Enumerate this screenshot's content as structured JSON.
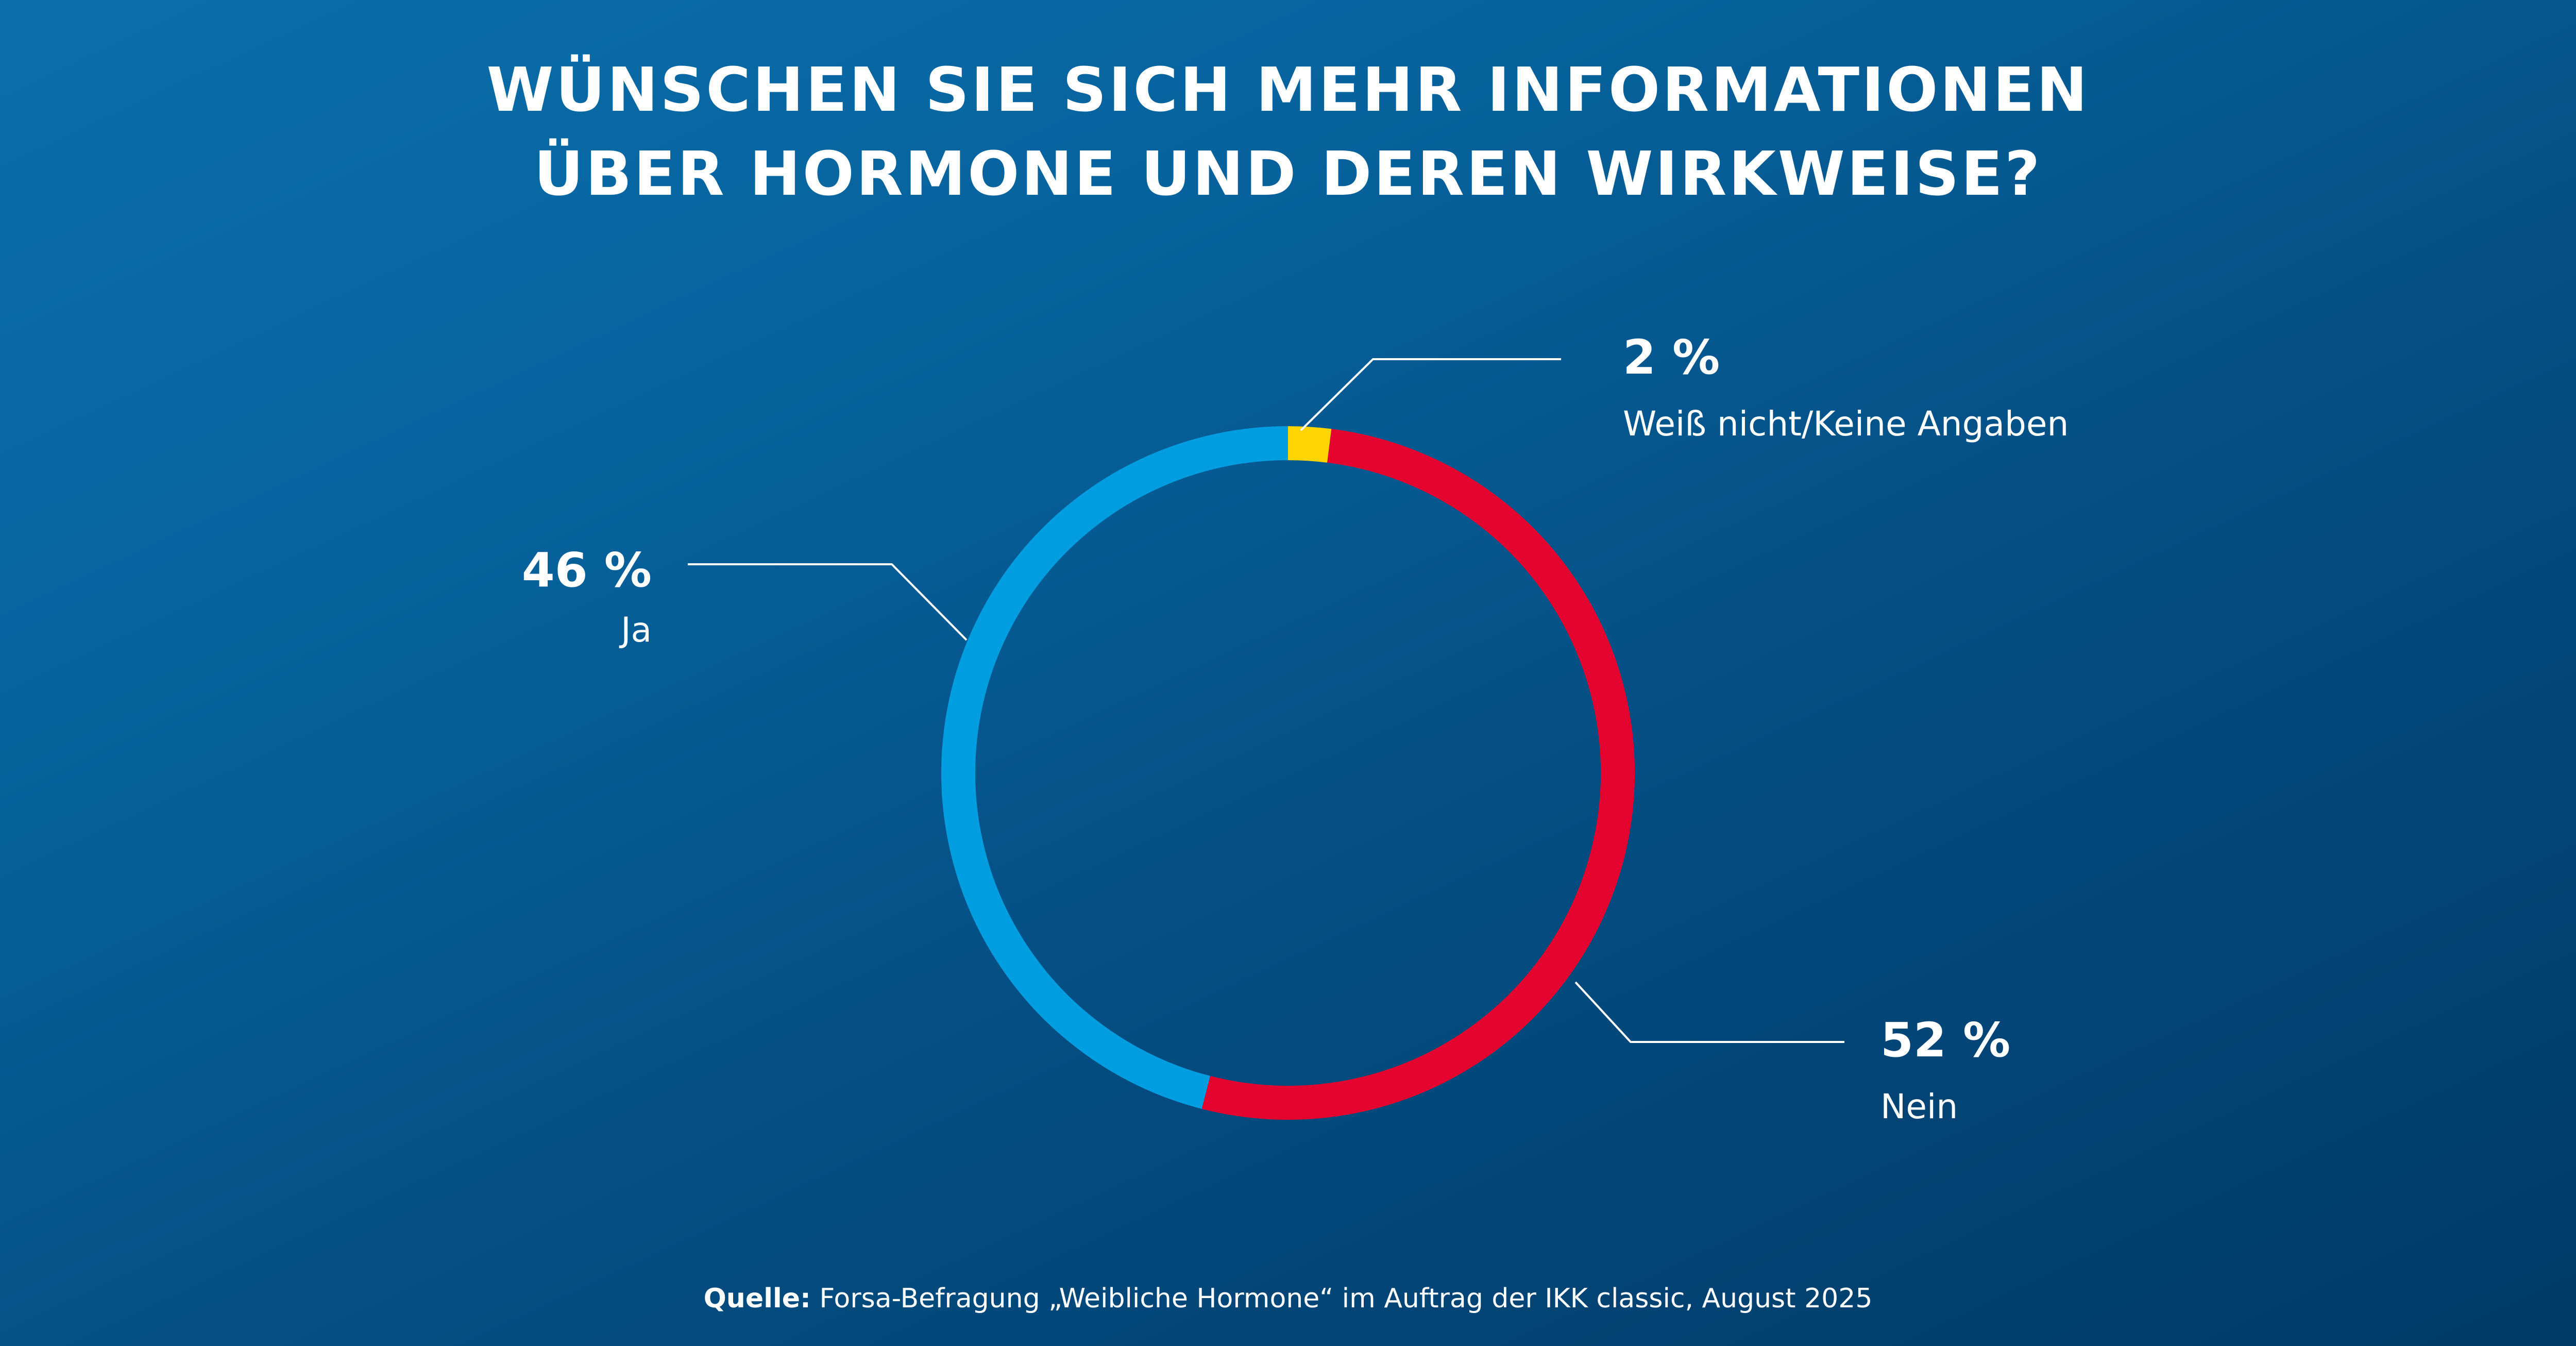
{
  "title": {
    "line1": "WÜNSCHEN SIE SICH MEHR INFORMATIONEN",
    "line2": "ÜBER HORMONE UND DEREN WIRKWEISE?"
  },
  "colors": {
    "ja": "#009de0",
    "nein": "#e4032e",
    "weiss_nicht": "#ffd500",
    "text": "#ffffff"
  },
  "chart_data": {
    "type": "pie",
    "variant": "donut",
    "title": "WÜNSCHEN SIE SICH MEHR INFORMATIONEN ÜBER HORMONE UND DEREN WIRKWEISE?",
    "unit": "%",
    "slices": [
      {
        "key": "weiss_nicht",
        "label": "Weiß nicht/Keine Angaben",
        "value": 2,
        "value_label": "2 %",
        "color": "#ffd500"
      },
      {
        "key": "nein",
        "label": "Nein",
        "value": 52,
        "value_label": "52 %",
        "color": "#e4032e"
      },
      {
        "key": "ja",
        "label": "Ja",
        "value": 46,
        "value_label": "46 %",
        "color": "#009de0"
      }
    ],
    "start": "top",
    "direction": "clockwise"
  },
  "source": {
    "label": "Quelle:",
    "text": " Forsa-Befragung „Weibliche Hormone“ im Auftrag der IKK classic, August 2025"
  }
}
